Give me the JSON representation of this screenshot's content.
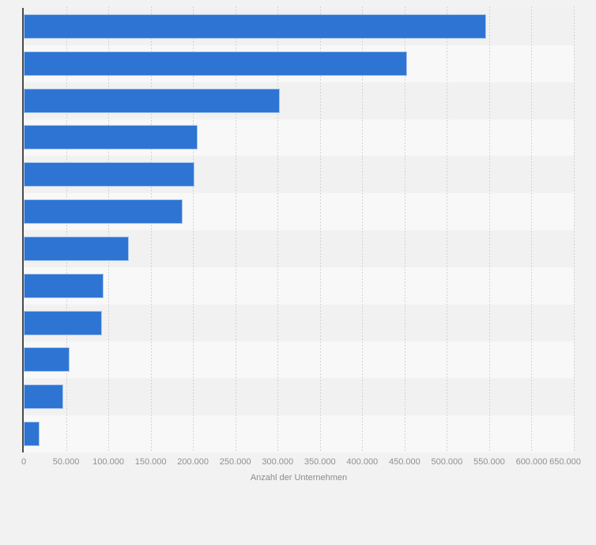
{
  "chart_data": {
    "type": "bar",
    "orientation": "horizontal",
    "title": "",
    "xlabel": "Anzahl der Unternehmen",
    "ylabel": "",
    "y_axis_labels_visible": false,
    "values": [
      546000,
      453000,
      303000,
      205000,
      202000,
      188000,
      124000,
      94000,
      92000,
      54500,
      47000,
      19000
    ],
    "xlim": [
      0,
      650000
    ],
    "x_ticks": [
      {
        "label": "0",
        "value": 0
      },
      {
        "label": "50.000",
        "value": 50000
      },
      {
        "label": "100.000",
        "value": 100000
      },
      {
        "label": "150.000",
        "value": 150000
      },
      {
        "label": "200.000",
        "value": 200000
      },
      {
        "label": "250.000",
        "value": 250000
      },
      {
        "label": "300.000",
        "value": 300000
      },
      {
        "label": "350.000",
        "value": 350000
      },
      {
        "label": "400.000",
        "value": 400000
      },
      {
        "label": "450.000",
        "value": 450000
      },
      {
        "label": "500.000",
        "value": 500000
      },
      {
        "label": "550.000",
        "value": 550000
      },
      {
        "label": "600.000",
        "value": 600000
      },
      {
        "label": "650.000",
        "value": 650000
      }
    ],
    "grid": "vertical-dashed",
    "legend": "none",
    "plot_background": "zebra-row-stripes"
  },
  "colors": {
    "bar_fill": "#2e75d3",
    "bar_border": "#abc7ee",
    "background": "#f2f2f2",
    "stripe_even": "#f1f1f1",
    "stripe_odd": "#f8f8f8",
    "axis_line": "#4a4a4a",
    "gridline": "#d2d2d2",
    "tick_text": "#909090",
    "axis_title_text": "#8c8c8c"
  }
}
